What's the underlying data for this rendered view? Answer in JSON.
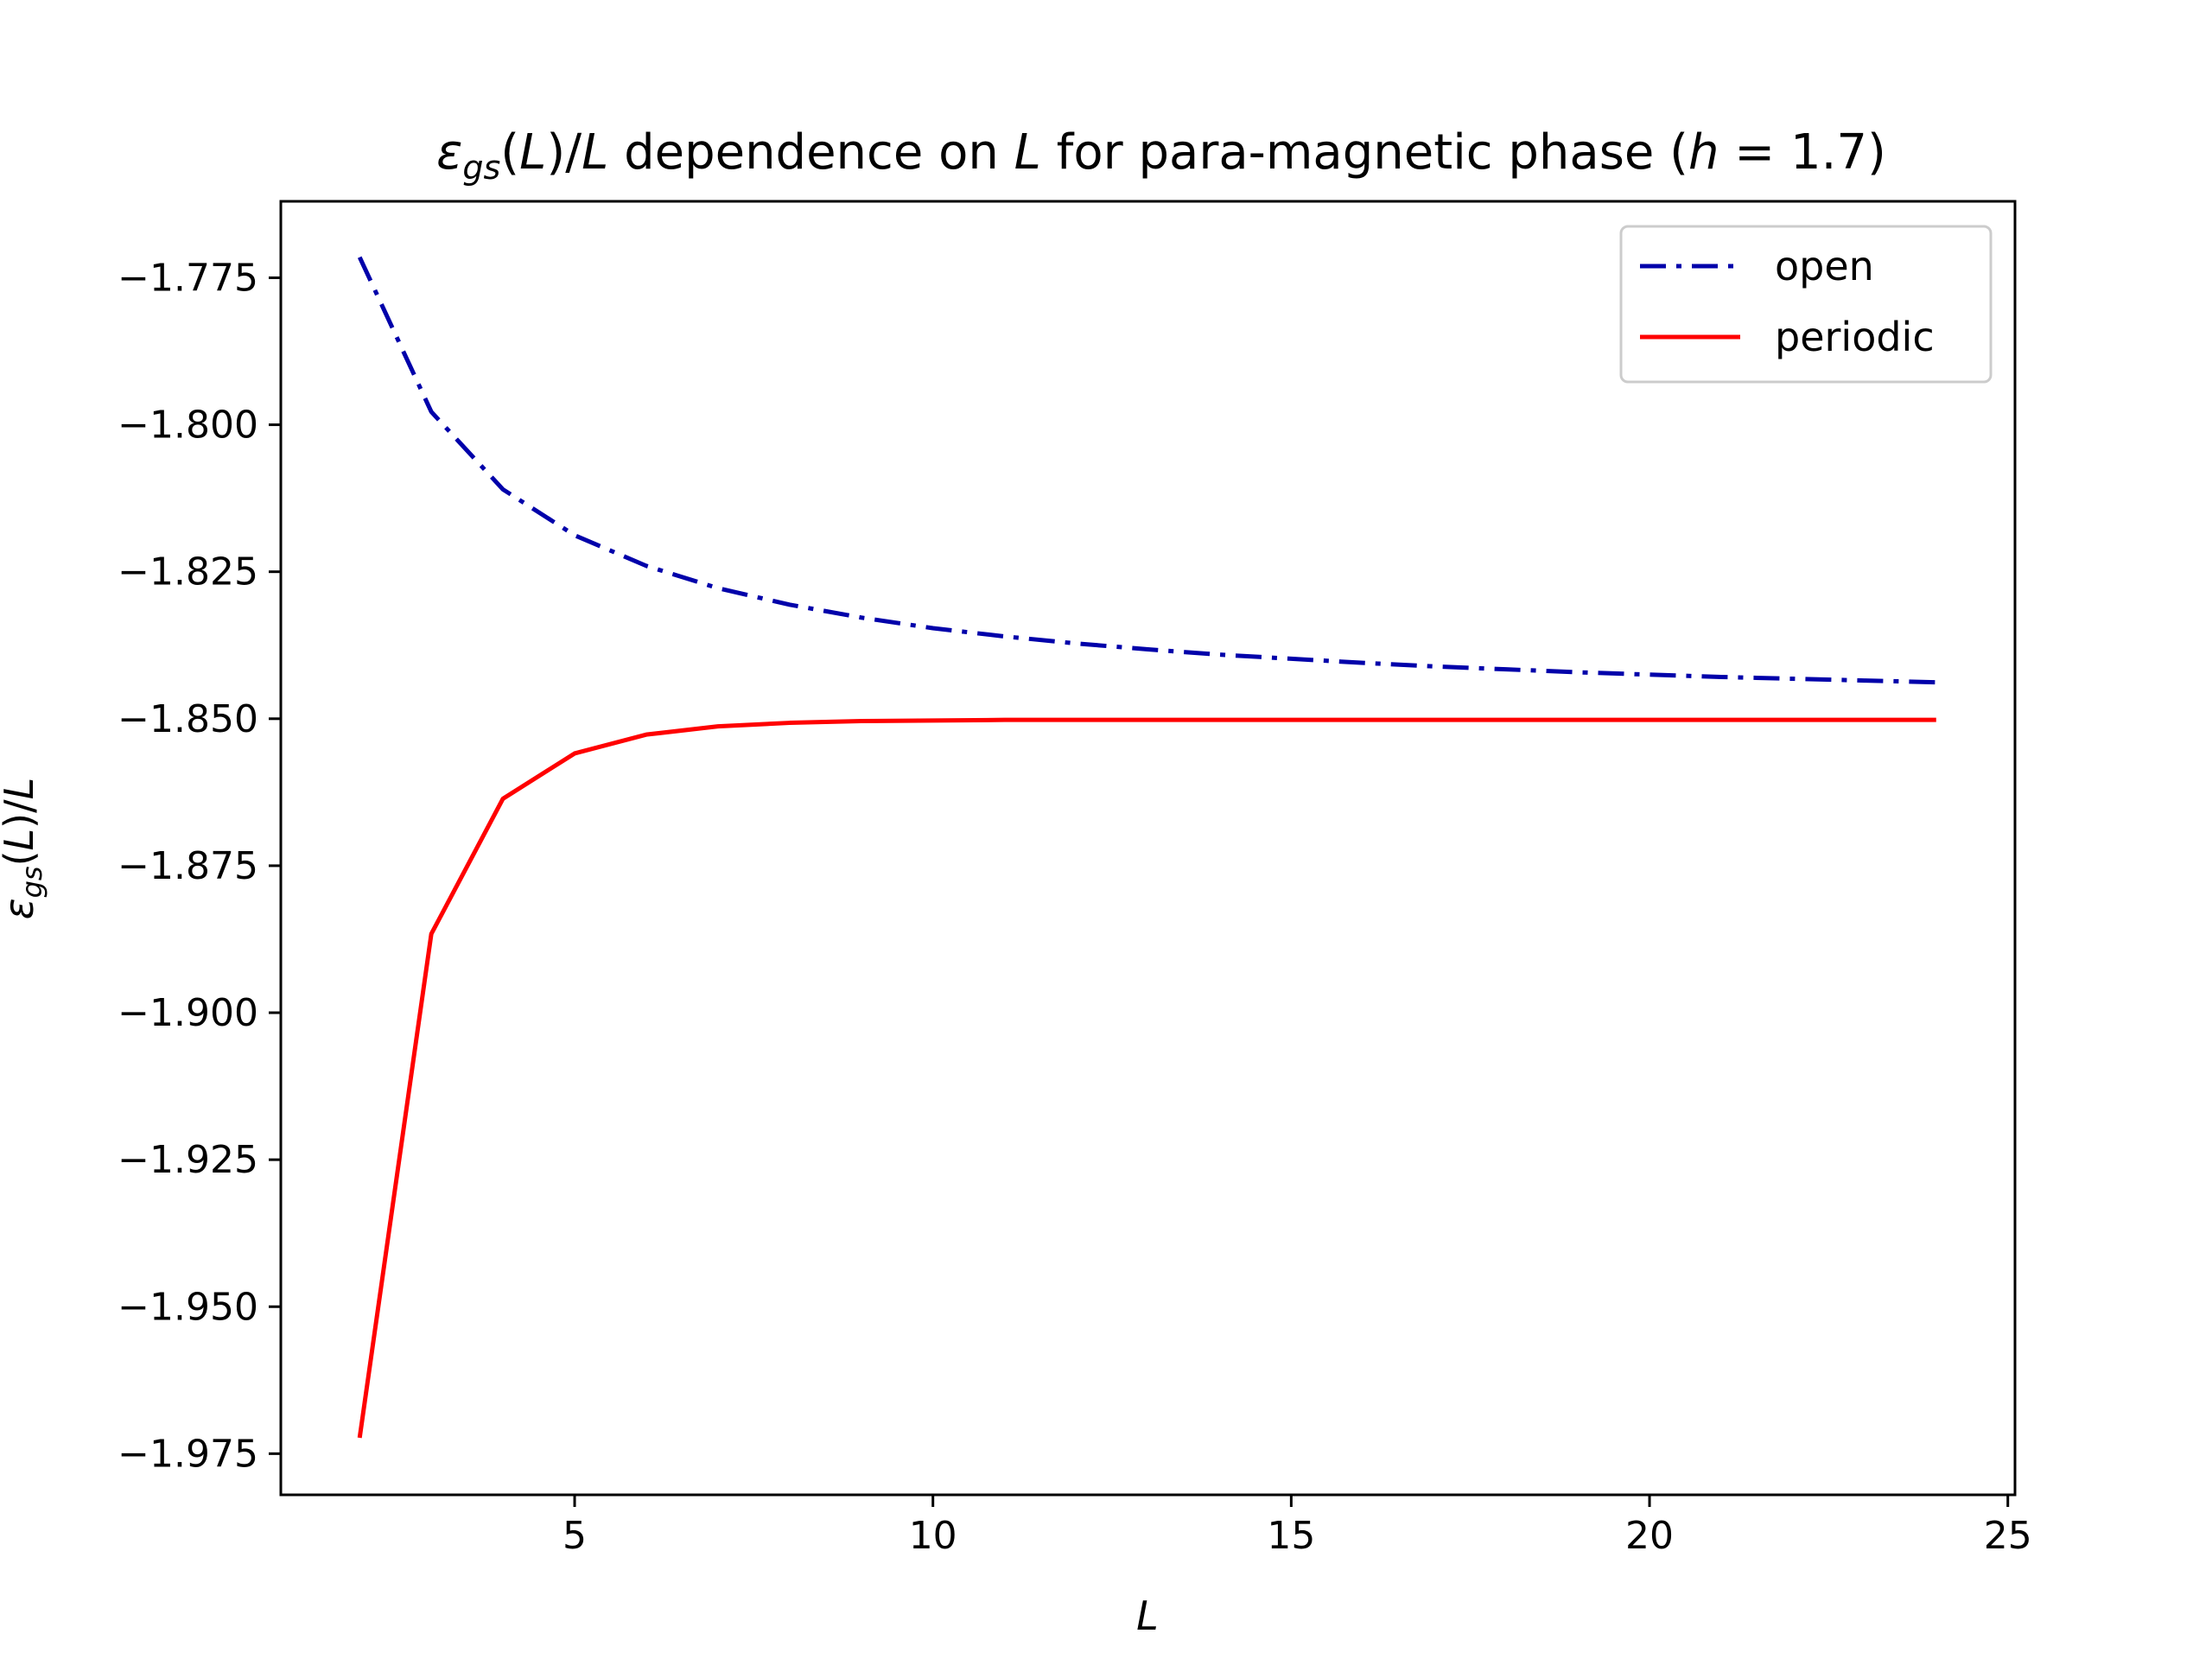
{
  "chart_data": {
    "type": "line",
    "title": {
      "prefix": "ε",
      "prefix_sub": "gs",
      "part1": "(",
      "part1_italic": "L",
      "part2": ")/",
      "part2_italic": "L",
      "part3": " dependence on ",
      "part3_italic": "L",
      "part4": " for para-magnetic phase (",
      "part4_italic": "h",
      "part5": " = 1.7)"
    },
    "xlabel": "L",
    "ylabel": {
      "prefix": "ε",
      "prefix_sub": "gs",
      "part1": "(",
      "part1_italic": "L",
      "part2": ")/",
      "part2_italic": "L"
    },
    "xlim": [
      0.9,
      25.1
    ],
    "ylim": [
      -1.982,
      -1.762
    ],
    "xticks": [
      5,
      10,
      15,
      20,
      25
    ],
    "xtick_labels": [
      "5",
      "10",
      "15",
      "20",
      "25"
    ],
    "yticks": [
      -1.775,
      -1.8,
      -1.825,
      -1.85,
      -1.875,
      -1.9,
      -1.925,
      -1.95,
      -1.975
    ],
    "ytick_labels": [
      "−1.775",
      "−1.800",
      "−1.825",
      "−1.850",
      "−1.875",
      "−1.900",
      "−1.925",
      "−1.950",
      "−1.975"
    ],
    "grid": false,
    "legend_position": "top-right",
    "series": [
      {
        "name": "open",
        "color": "#0000aa",
        "style": "dashdot",
        "x": [
          2,
          3,
          4,
          5,
          6,
          7,
          8,
          9,
          10,
          11,
          12,
          13,
          14,
          15,
          16,
          17,
          18,
          19,
          20,
          21,
          22,
          23,
          24
        ],
        "y": [
          -1.7715,
          -1.7978,
          -1.811,
          -1.8188,
          -1.824,
          -1.8278,
          -1.8306,
          -1.8328,
          -1.8346,
          -1.836,
          -1.8372,
          -1.8382,
          -1.8391,
          -1.8398,
          -1.8405,
          -1.8411,
          -1.8416,
          -1.8421,
          -1.8425,
          -1.8429,
          -1.8432,
          -1.8435,
          -1.8438
        ]
      },
      {
        "name": "periodic",
        "color": "#ff0000",
        "style": "solid",
        "x": [
          2,
          3,
          4,
          5,
          6,
          7,
          8,
          9,
          10,
          11,
          12,
          13,
          14,
          15,
          16,
          17,
          18,
          19,
          20,
          21,
          22,
          23,
          24
        ],
        "y": [
          -1.9723,
          -1.8866,
          -1.8636,
          -1.8559,
          -1.8527,
          -1.8513,
          -1.8507,
          -1.8504,
          -1.8503,
          -1.8502,
          -1.8502,
          -1.8502,
          -1.8502,
          -1.8502,
          -1.8502,
          -1.8502,
          -1.8502,
          -1.8502,
          -1.8502,
          -1.8502,
          -1.8502,
          -1.8502,
          -1.8502
        ]
      }
    ]
  }
}
